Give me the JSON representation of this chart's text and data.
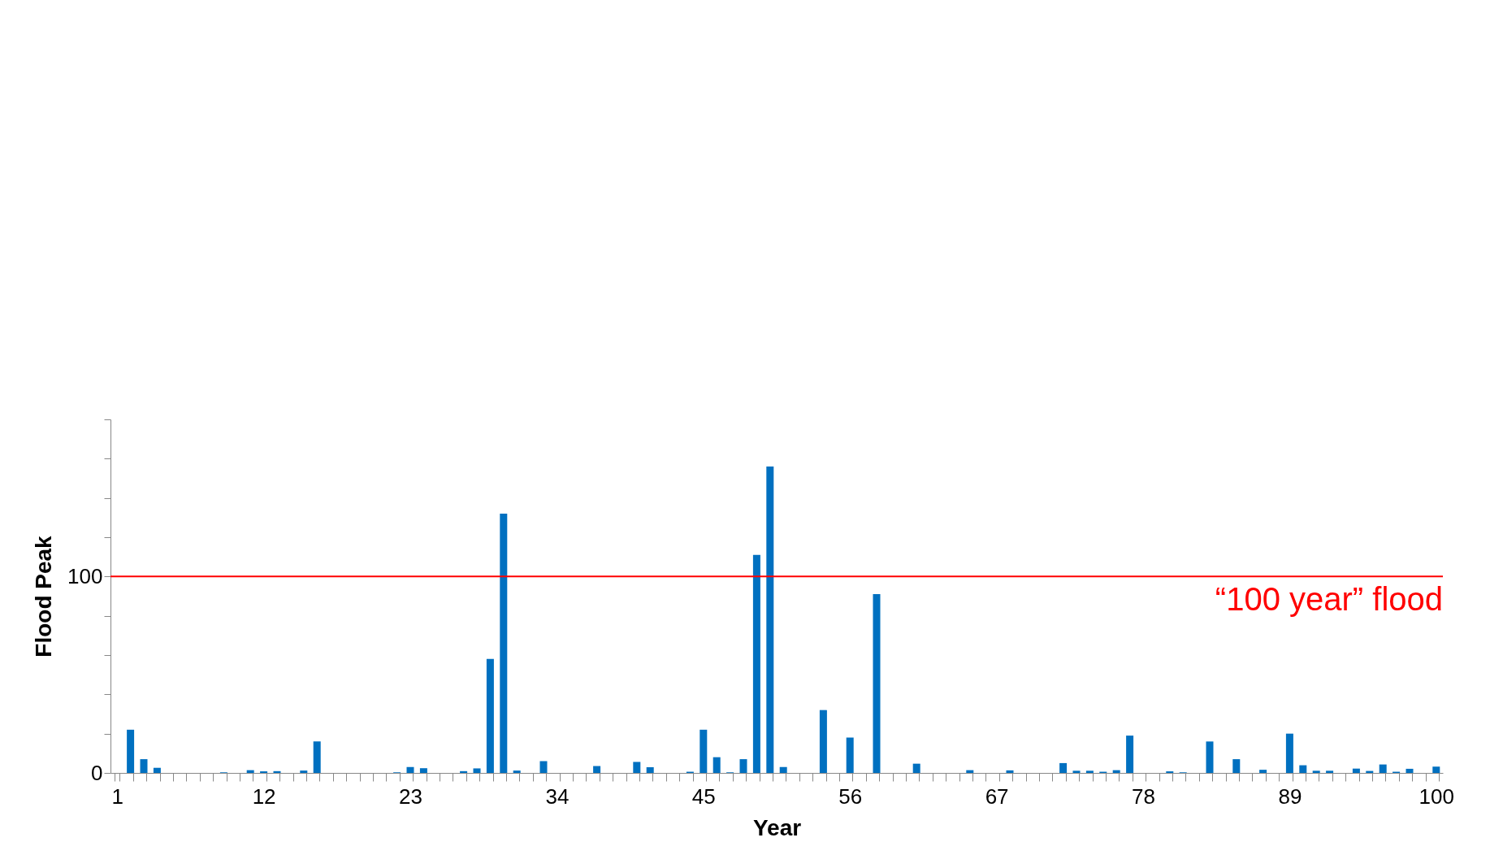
{
  "chart_data": {
    "type": "bar",
    "xlabel": "Year",
    "ylabel": "Flood Peak",
    "categories": [
      "1",
      null,
      null,
      null,
      null,
      null,
      null,
      null,
      null,
      null,
      null,
      "12",
      null,
      null,
      null,
      null,
      null,
      null,
      null,
      null,
      null,
      null,
      "23",
      null,
      null,
      null,
      null,
      null,
      null,
      null,
      null,
      null,
      null,
      "34",
      null,
      null,
      null,
      null,
      null,
      null,
      null,
      null,
      null,
      null,
      "45",
      null,
      null,
      null,
      null,
      null,
      null,
      null,
      null,
      null,
      null,
      "56",
      null,
      null,
      null,
      null,
      null,
      null,
      null,
      null,
      null,
      null,
      "67",
      null,
      null,
      null,
      null,
      null,
      null,
      null,
      null,
      null,
      null,
      "78",
      null,
      null,
      null,
      null,
      null,
      null,
      null,
      null,
      null,
      null,
      "89",
      null,
      null,
      null,
      null,
      null,
      null,
      null,
      null,
      null,
      null,
      "100"
    ],
    "values": [
      0,
      22,
      7,
      2.6,
      0,
      0,
      0,
      0,
      0.3,
      0,
      1.4,
      0.8,
      0.9,
      0,
      1.2,
      16,
      0,
      0,
      0,
      0,
      0,
      0.3,
      3,
      2.4,
      0,
      0,
      0.9,
      2.3,
      58,
      132,
      1.2,
      0,
      6,
      0,
      0,
      0,
      3.5,
      0,
      0,
      5.6,
      2.9,
      0,
      0,
      0.6,
      22,
      8,
      0.3,
      7,
      111,
      156,
      3,
      0,
      0,
      32,
      0,
      18,
      0,
      91,
      0,
      0,
      4.7,
      0,
      0,
      0,
      1.4,
      0,
      0,
      1.3,
      0,
      0,
      0,
      5,
      1.1,
      1.1,
      0.6,
      1.4,
      19,
      0,
      0,
      0.8,
      0.3,
      0,
      16,
      0,
      7,
      0,
      1.6,
      0,
      20,
      3.9,
      1.1,
      1.1,
      0,
      2.2,
      1,
      4.3,
      0.6,
      2.1,
      0,
      3.2
    ],
    "color": "#0070c0",
    "ylim": [
      0,
      180
    ],
    "yticks": [
      0,
      {
        "value": 20,
        "label": null
      },
      {
        "value": 40,
        "label": null
      },
      {
        "value": 60,
        "label": null
      },
      {
        "value": 80,
        "label": null
      },
      100,
      {
        "value": 120,
        "label": null
      },
      {
        "value": 140,
        "label": null
      },
      {
        "value": 160,
        "label": null
      },
      {
        "value": 180,
        "label": null
      }
    ],
    "ref_lines": [
      {
        "axis": "y",
        "value": 100,
        "label": "“100 year” flood",
        "color": "#ff0000"
      }
    ],
    "grid": false
  }
}
